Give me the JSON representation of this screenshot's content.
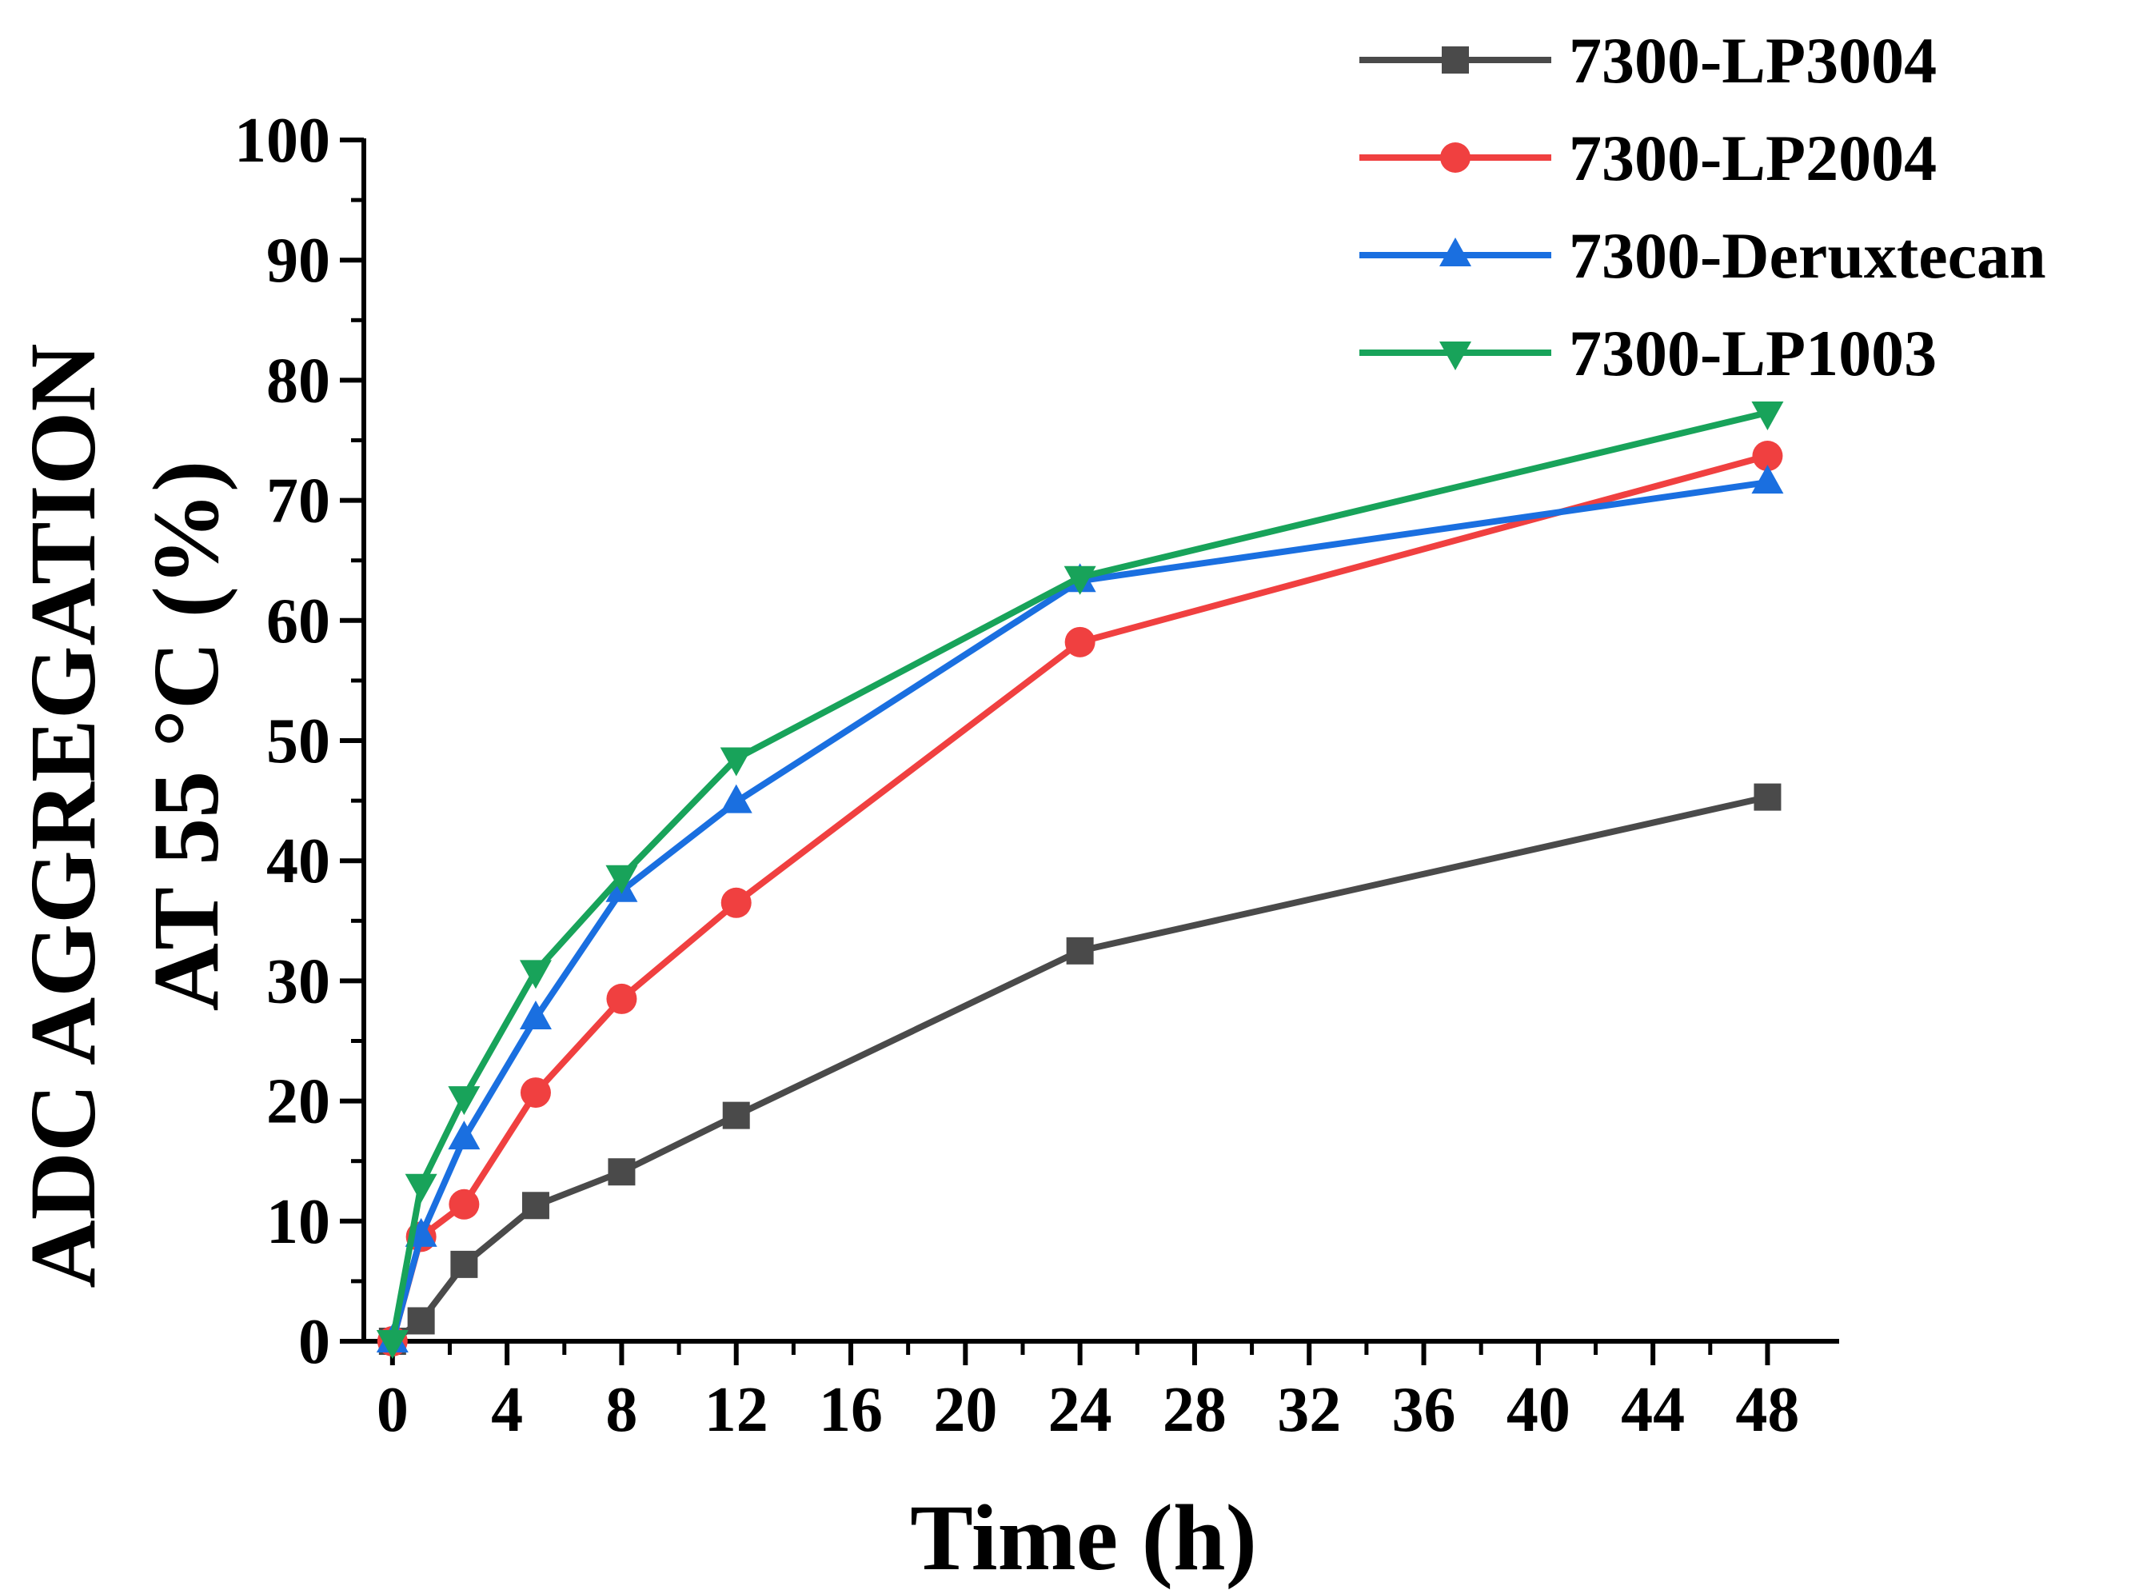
{
  "chart_data": {
    "type": "line",
    "title": "",
    "xlabel": "Time (h)",
    "ylabel_line1": "ADC AGGREGATION",
    "ylabel_line2": "AT 55 °C (%)",
    "xlim": [
      -1,
      50.5
    ],
    "ylim": [
      0,
      100
    ],
    "xticks": [
      0,
      4,
      8,
      12,
      16,
      20,
      24,
      28,
      32,
      36,
      40,
      44,
      48
    ],
    "yticks": [
      0,
      10,
      20,
      30,
      40,
      50,
      60,
      70,
      80,
      90,
      100
    ],
    "grid": false,
    "legend_position": "top-right",
    "series": [
      {
        "name": "7300-LP3004",
        "color": "#4a4a4a",
        "marker": "square",
        "x": [
          0,
          1,
          2.5,
          5,
          8,
          12,
          24,
          48
        ],
        "y": [
          0,
          1.7,
          6.4,
          11.3,
          14.1,
          18.8,
          32.5,
          45.3
        ]
      },
      {
        "name": "7300-LP2004",
        "color": "#f04040",
        "marker": "circle",
        "x": [
          0,
          1,
          2.5,
          5,
          8,
          12,
          24,
          48
        ],
        "y": [
          0,
          8.7,
          11.4,
          20.7,
          28.5,
          36.5,
          58.2,
          73.7
        ]
      },
      {
        "name": "7300-Deruxtecan",
        "color": "#1a6fe0",
        "marker": "triangle-up",
        "x": [
          0,
          1,
          2.5,
          5,
          8,
          12,
          24,
          48
        ],
        "y": [
          0,
          8.8,
          16.9,
          26.9,
          37.5,
          44.9,
          63.3,
          71.5
        ]
      },
      {
        "name": "7300-LP1003",
        "color": "#18a35a",
        "marker": "triangle-down",
        "x": [
          0,
          1,
          2.5,
          5,
          8,
          12,
          24,
          48
        ],
        "y": [
          0,
          13.0,
          20.3,
          30.8,
          38.7,
          48.5,
          63.6,
          77.3
        ]
      }
    ]
  }
}
